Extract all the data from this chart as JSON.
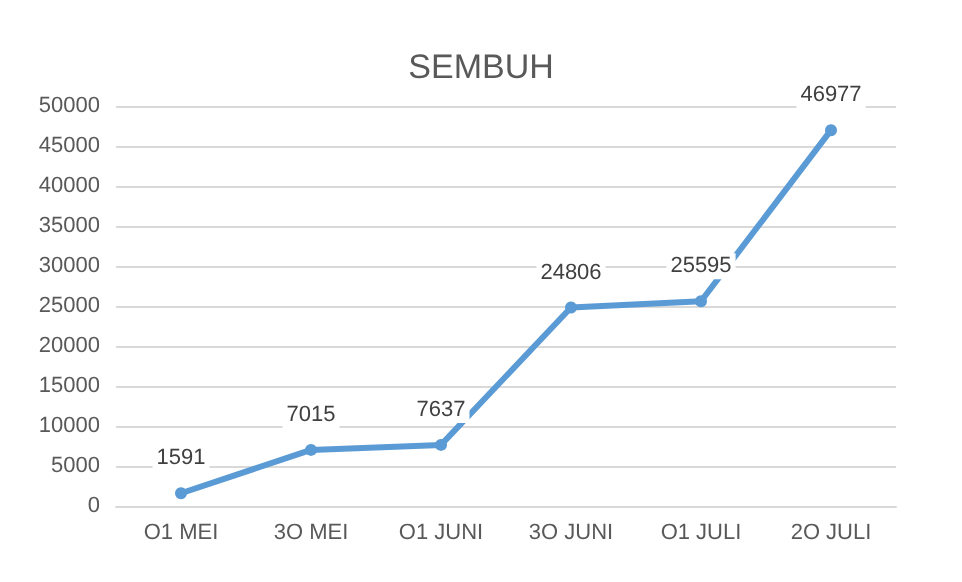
{
  "chart_data": {
    "type": "line",
    "title": "SEMBUH",
    "categories": [
      "O1 MEI",
      "3O MEI",
      "O1 JUNI",
      "3O JUNI",
      "O1 JULI",
      "2O JULI"
    ],
    "series": [
      {
        "color": "#5b9bd5",
        "values": [
          1591,
          7015,
          7637,
          24806,
          25595,
          46977
        ]
      }
    ],
    "ylim": [
      0,
      50000
    ],
    "yticks": [
      0,
      5000,
      10000,
      15000,
      20000,
      25000,
      30000,
      35000,
      40000,
      45000,
      50000
    ],
    "grid": "y",
    "data_labels": true,
    "marker": "circle",
    "line_style": "solid"
  }
}
